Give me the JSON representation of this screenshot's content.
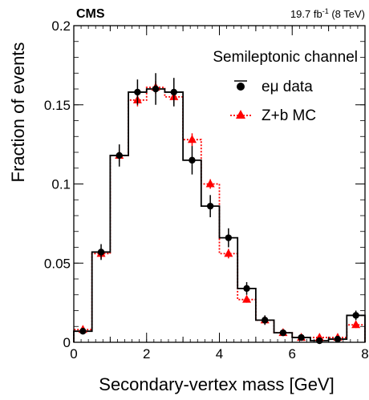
{
  "chart_data": {
    "type": "histogram",
    "experiment": "CMS",
    "lumi_main": "19.7 fb",
    "lumi_sup": "-1",
    "lumi_energy": " (8 TeV)",
    "channel": "Semileptonic channel",
    "xlabel": "Secondary-vertex mass [GeV]",
    "ylabel": "Fraction of events",
    "xlim": [
      0,
      8
    ],
    "ylim": [
      0,
      0.2
    ],
    "x_ticks": [
      0,
      2,
      4,
      6,
      8
    ],
    "y_ticks": [
      0,
      0.05,
      0.1,
      0.15,
      0.2
    ],
    "x_tick_labels": [
      "0",
      "2",
      "4",
      "6",
      "8"
    ],
    "y_tick_labels": [
      "0",
      "0.05",
      "0.1",
      "0.15",
      "0.2"
    ],
    "bin_edges": [
      0,
      0.5,
      1.0,
      1.5,
      2.0,
      2.5,
      3.0,
      3.5,
      4.0,
      4.5,
      5.0,
      5.5,
      6.0,
      6.5,
      7.0,
      7.5,
      8.0
    ],
    "series": [
      {
        "name": "eμ data",
        "style": "black histogram with markers and error bars",
        "color": "#000000",
        "values": [
          0.007,
          0.057,
          0.118,
          0.158,
          0.16,
          0.158,
          0.115,
          0.086,
          0.066,
          0.034,
          0.014,
          0.006,
          0.003,
          0.001,
          0.002,
          0.017
        ],
        "errors": [
          0.002,
          0.005,
          0.007,
          0.008,
          0.01,
          0.009,
          0.009,
          0.007,
          0.006,
          0.004,
          0.003,
          0.002,
          0.001,
          0.001,
          0.001,
          0.003
        ]
      },
      {
        "name": "Z+b MC",
        "style": "red dotted histogram with triangle markers",
        "color": "#ff0000",
        "values": [
          0.008,
          0.056,
          0.118,
          0.153,
          0.161,
          0.155,
          0.128,
          0.1,
          0.056,
          0.027,
          0.014,
          0.006,
          0.003,
          0.003,
          0.003,
          0.011
        ],
        "errors": [
          0.001,
          0.003,
          0.004,
          0.004,
          0.004,
          0.004,
          0.004,
          0.003,
          0.003,
          0.002,
          0.002,
          0.001,
          0.001,
          0.001,
          0.001,
          0.002
        ]
      }
    ]
  }
}
